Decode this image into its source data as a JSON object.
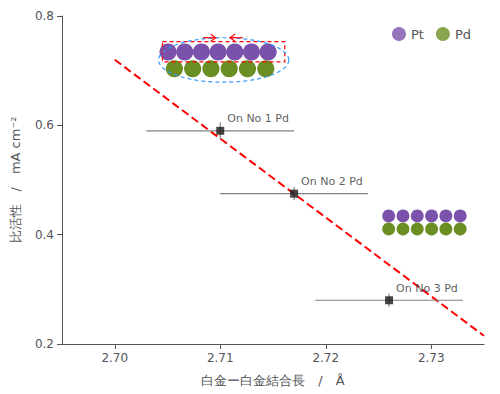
{
  "chart_data": {
    "type": "scatter",
    "xlabel": "白金ー白金結合長　/　Å",
    "ylabel": "比活性　/　mA cm⁻²",
    "xlim": [
      2.695,
      2.735
    ],
    "ylim": [
      0.2,
      0.8
    ],
    "xticks": [
      {
        "value": 2.7,
        "label": "2.70"
      },
      2.71,
      2.72,
      2.73
    ],
    "yticks": [
      0.2,
      0.4,
      0.6,
      0.8
    ],
    "grid": false,
    "points": {
      "x": [
        2.71,
        2.717,
        2.726
      ],
      "values": [
        0.59,
        0.475,
        0.28
      ],
      "xerr": [
        0.007,
        0.007,
        0.007
      ],
      "yerr": [
        0.015,
        0.012,
        0.012
      ],
      "labels": [
        "On No 1 Pd",
        "On No 2 Pd",
        "On No 3 Pd"
      ],
      "color": "#1a1a1a",
      "marker": "square",
      "error_color": "gray"
    },
    "trend_line": {
      "x_start": 2.7,
      "x_end": 2.735,
      "y_start": 0.72,
      "y_end": 0.215,
      "color": "red",
      "line_style": "dashed"
    },
    "legend": "upper right",
    "legend_entries": [
      {
        "name": "Pt",
        "color": "#7B52AB",
        "marker": "circle"
      },
      {
        "name": "Pd",
        "color": "#6B8E23",
        "marker": "circle"
      }
    ],
    "inset": {
      "box_color": "red",
      "ellipse_color": "#3399ff"
    },
    "background_color": "#ffffff"
  }
}
